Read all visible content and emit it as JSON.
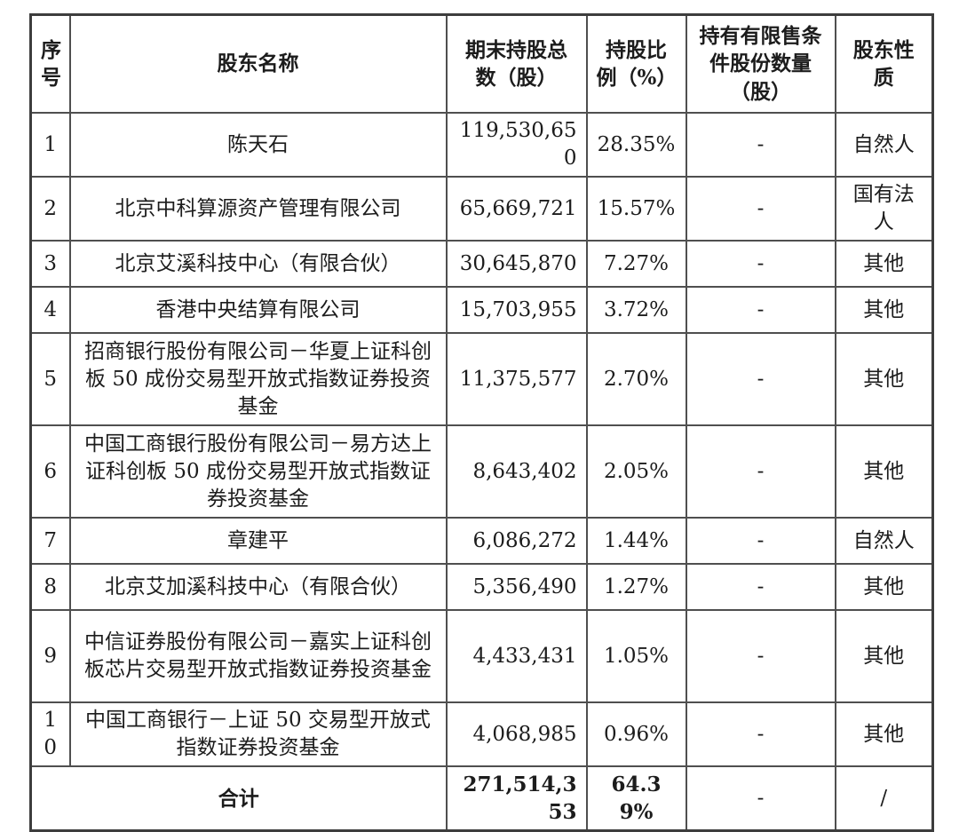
{
  "table": {
    "headers": {
      "no": "序号",
      "name": "股东名称",
      "shares": "期末持股总数（股）",
      "ratio": "持股比例（%）",
      "restricted": "持有有限售条件股份数量（股）",
      "nature": "股东性质"
    },
    "rows": [
      {
        "no": "1",
        "name": "陈天石",
        "shares": "119,530,650",
        "ratio": "28.35%",
        "restricted": "-",
        "nature": "自然人"
      },
      {
        "no": "2",
        "name": "北京中科算源资产管理有限公司",
        "shares": "65,669,721",
        "ratio": "15.57%",
        "restricted": "-",
        "nature": "国有法人"
      },
      {
        "no": "3",
        "name": "北京艾溪科技中心（有限合伙）",
        "shares": "30,645,870",
        "ratio": "7.27%",
        "restricted": "-",
        "nature": "其他"
      },
      {
        "no": "4",
        "name": "香港中央结算有限公司",
        "shares": "15,703,955",
        "ratio": "3.72%",
        "restricted": "-",
        "nature": "其他"
      },
      {
        "no": "5",
        "name": "招商银行股份有限公司－华夏上证科创板 50 成份交易型开放式指数证券投资基金",
        "shares": "11,375,577",
        "ratio": "2.70%",
        "restricted": "-",
        "nature": "其他"
      },
      {
        "no": "6",
        "name": "中国工商银行股份有限公司－易方达上证科创板 50 成份交易型开放式指数证券投资基金",
        "shares": "8,643,402",
        "ratio": "2.05%",
        "restricted": "-",
        "nature": "其他"
      },
      {
        "no": "7",
        "name": "章建平",
        "shares": "6,086,272",
        "ratio": "1.44%",
        "restricted": "-",
        "nature": "自然人"
      },
      {
        "no": "8",
        "name": "北京艾加溪科技中心（有限合伙）",
        "shares": "5,356,490",
        "ratio": "1.27%",
        "restricted": "-",
        "nature": "其他"
      },
      {
        "no": "9",
        "name": "中信证券股份有限公司－嘉实上证科创板芯片交易型开放式指数证券投资基金",
        "shares": "4,433,431",
        "ratio": "1.05%",
        "restricted": "-",
        "nature": "其他"
      },
      {
        "no": "10",
        "name": "中国工商银行－上证 50 交易型开放式指数证券投资基金",
        "shares": "4,068,985",
        "ratio": "0.96%",
        "restricted": "-",
        "nature": "其他"
      }
    ],
    "total": {
      "label": "合计",
      "shares": "271,514,353",
      "ratio": "64.39%",
      "restricted": "-",
      "nature": "/"
    }
  }
}
